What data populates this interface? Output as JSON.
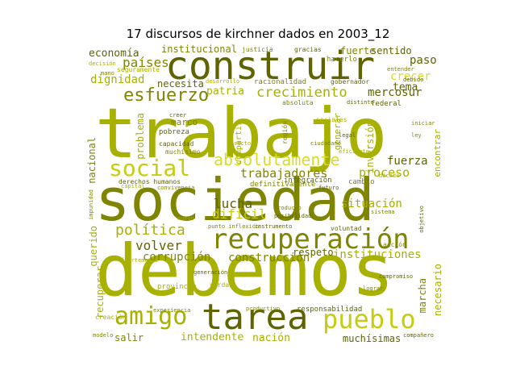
{
  "title": "17 discursos de kirchner dados en 2003_12",
  "colors": [
    "#a8b000",
    "#7f8500",
    "#5f6400",
    "#c6cc10",
    "#d7dc2a",
    "#919800"
  ],
  "words": [
    {
      "text": "debemos"
    },
    {
      "text": "sociedad"
    },
    {
      "text": "trabajo"
    },
    {
      "text": "construir"
    },
    {
      "text": "recuperación"
    },
    {
      "text": "tarea"
    },
    {
      "text": "pueblo"
    },
    {
      "text": "amigo"
    },
    {
      "text": "social"
    },
    {
      "text": "absolutamente"
    },
    {
      "text": "esfuerzo"
    },
    {
      "text": "crecimiento"
    },
    {
      "text": "institucional"
    },
    {
      "text": "países"
    },
    {
      "text": "economía"
    },
    {
      "text": "dignidad"
    },
    {
      "text": "necesita"
    },
    {
      "text": "patria"
    },
    {
      "text": "mercosur"
    },
    {
      "text": "paso"
    },
    {
      "text": "crecer"
    },
    {
      "text": "tema"
    },
    {
      "text": "fuerte"
    },
    {
      "text": "sentido"
    },
    {
      "text": "trabajadores"
    },
    {
      "text": "proceso"
    },
    {
      "text": "fuerza"
    },
    {
      "text": "lucha"
    },
    {
      "text": "difícil"
    },
    {
      "text": "política"
    },
    {
      "text": "volver"
    },
    {
      "text": "corrupción"
    },
    {
      "text": "construcción"
    },
    {
      "text": "respeto"
    },
    {
      "text": "instituciones"
    },
    {
      "text": "marcha"
    },
    {
      "text": "necesario"
    },
    {
      "text": "situación"
    },
    {
      "text": "intendente"
    },
    {
      "text": "nación"
    },
    {
      "text": "muchísimas"
    },
    {
      "text": "salir"
    },
    {
      "text": "querido"
    },
    {
      "text": "recuperar"
    },
    {
      "text": "problema"
    },
    {
      "text": "nacional"
    },
    {
      "text": "inversión"
    },
    {
      "text": "generar"
    },
    {
      "text": "marco"
    },
    {
      "text": "pobreza"
    },
    {
      "text": "capacidad"
    },
    {
      "text": "compartir"
    },
    {
      "text": "encontrar"
    },
    {
      "text": "definitivamente"
    },
    {
      "text": "integración"
    },
    {
      "text": "cambio"
    },
    {
      "text": "responsabilidad"
    },
    {
      "text": "muchísimo"
    },
    {
      "text": "derechos humanos"
    },
    {
      "text": "sociales"
    },
    {
      "text": "región"
    },
    {
      "text": "federal"
    },
    {
      "text": "justicia"
    },
    {
      "text": "hacerlo"
    },
    {
      "text": "seguramente"
    },
    {
      "text": "entender"
    },
    {
      "text": "debido"
    },
    {
      "text": "década"
    },
    {
      "text": "producto"
    },
    {
      "text": "voluntad"
    },
    {
      "text": "provincia"
    },
    {
      "text": "compañero"
    },
    {
      "text": "modelo"
    },
    {
      "text": "creación"
    },
    {
      "text": "gracias"
    },
    {
      "text": "punto inflexión"
    },
    {
      "text": "instrumento"
    },
    {
      "text": "racionalidad"
    },
    {
      "text": "gobernador"
    },
    {
      "text": "absoluta"
    },
    {
      "text": "distinto"
    },
    {
      "text": "iniciar"
    },
    {
      "text": "desarrollo"
    },
    {
      "text": "mano"
    },
    {
      "text": "decisión"
    },
    {
      "text": "impunidad"
    },
    {
      "text": "creer"
    },
    {
      "text": "capital"
    },
    {
      "text": "acción"
    },
    {
      "text": "posibilidad"
    },
    {
      "text": "productivo"
    },
    {
      "text": "objetivo"
    },
    {
      "text": "fuertemente"
    },
    {
      "text": "experiencia"
    },
    {
      "text": "compromiso"
    },
    {
      "text": "convivencia"
    },
    {
      "text": "verdad"
    },
    {
      "text": "lograr"
    },
    {
      "text": "legal"
    },
    {
      "text": "ciudadano"
    },
    {
      "text": "eficiente"
    },
    {
      "text": "generación"
    },
    {
      "text": "sistema"
    },
    {
      "text": "nuevo"
    },
    {
      "text": "futuro"
    },
    {
      "text": "ley"
    },
    {
      "text": "sector"
    }
  ]
}
